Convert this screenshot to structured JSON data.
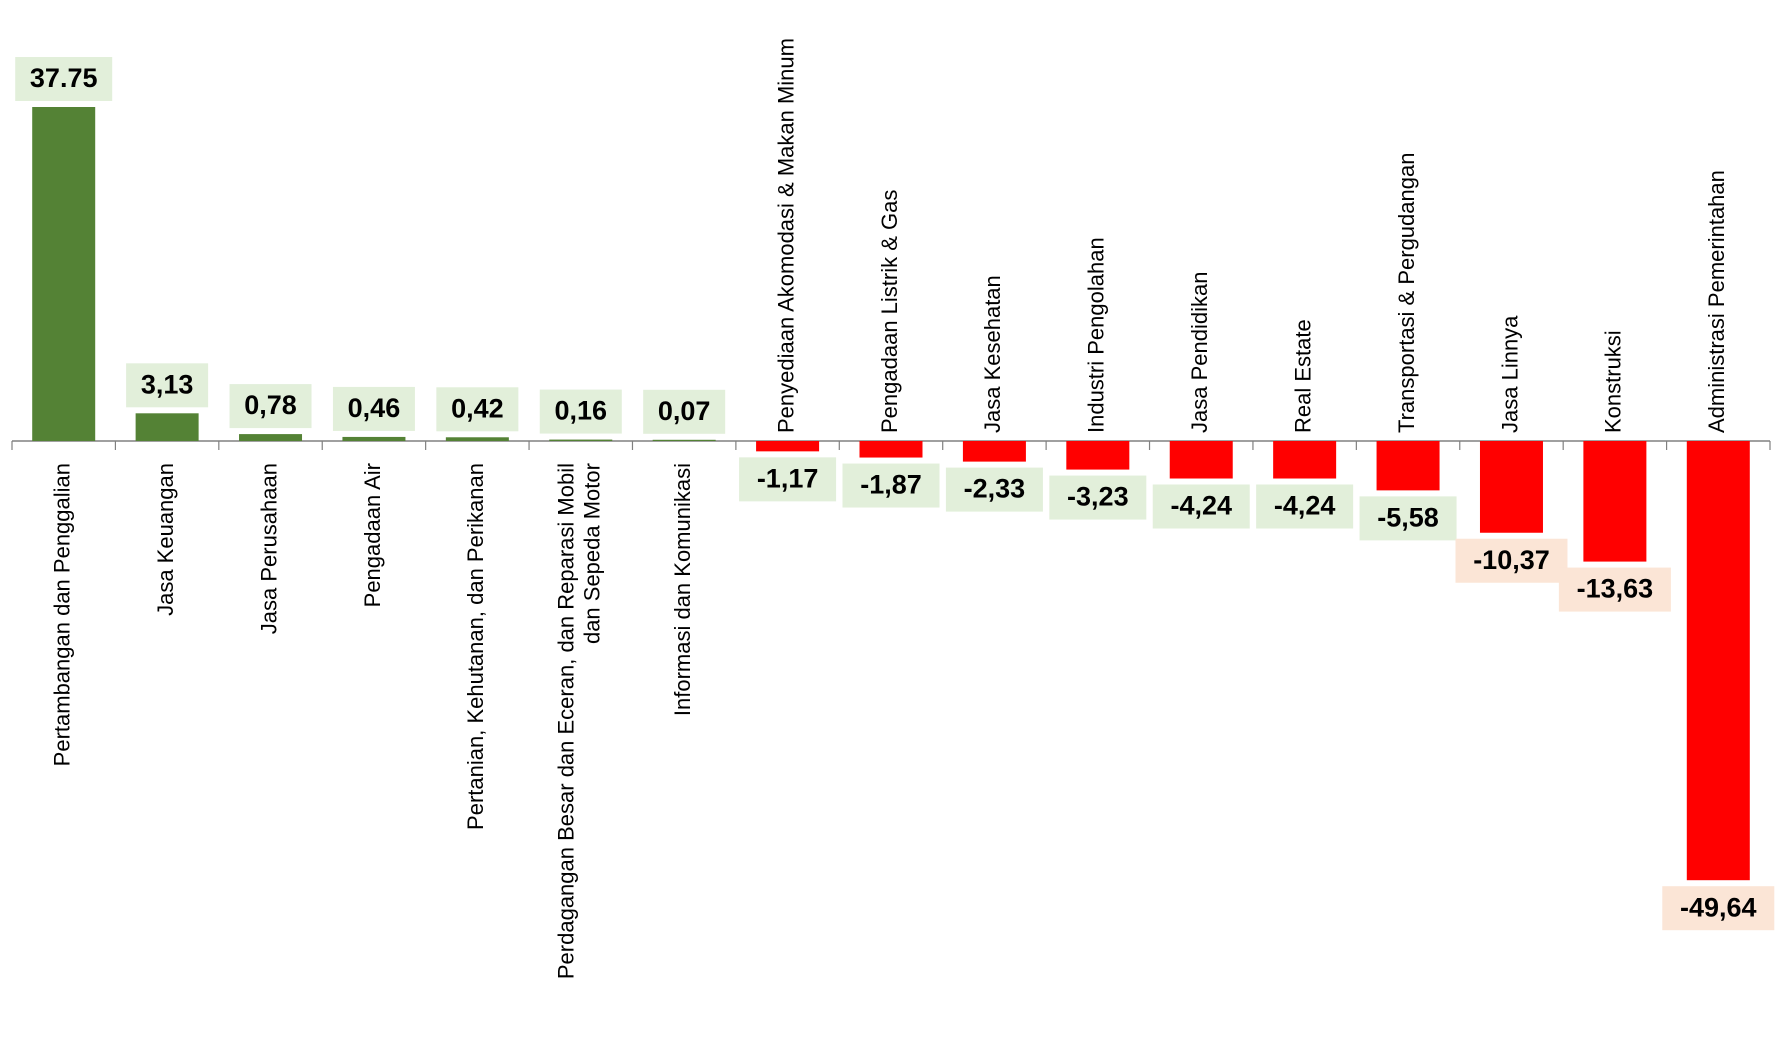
{
  "chart_data": {
    "type": "bar",
    "categories": [
      "Pertambangan dan Penggalian",
      "Jasa Keuangan",
      "Jasa Perusahaan",
      "Pengadaan Air",
      "Pertanian, Kehutanan, dan Perikanan",
      "Perdagangan Besar dan Eceran, dan Reparasi Mobil|dan Sepeda Motor",
      "Informasi dan Komunikasi",
      "Penyediaan Akomodasi & Makan Minum",
      "Pengadaan Listrik & Gas",
      "Jasa Kesehatan",
      "Industri Pengolahan",
      "Jasa Pendidikan",
      "Real Estate",
      "Transportasi & Pergudangan",
      "Jasa Linnya",
      "Konstruksi",
      "Administrasi Pemerintahan"
    ],
    "values": [
      37.75,
      3.13,
      0.78,
      0.46,
      0.42,
      0.16,
      0.07,
      -1.17,
      -1.87,
      -2.33,
      -3.23,
      -4.24,
      -4.24,
      -5.58,
      -10.37,
      -13.63,
      -49.64
    ],
    "value_labels": [
      "37.75",
      "3,13",
      "0,78",
      "0,46",
      "0,42",
      "0,16",
      "0,07",
      "-1,17",
      "-1,87",
      "-2,33",
      "-3,23",
      "-4,24",
      "-4,24",
      "-5,58",
      "-10,37",
      "-13,63",
      "-49,64"
    ],
    "label_backgrounds": [
      "light-green",
      "light-green",
      "light-green",
      "light-green",
      "light-green",
      "light-green",
      "light-green",
      "light-green",
      "light-green",
      "light-green",
      "light-green",
      "light-green",
      "light-green",
      "light-green",
      "peach",
      "peach",
      "peach"
    ],
    "title": "",
    "xlabel": "",
    "ylabel": "",
    "ylim": [
      -53.6,
      41.4
    ],
    "grid": false,
    "legend": "none",
    "colors": {
      "positive_bar": "#548235",
      "negative_bar": "#ff0000",
      "label_bg_light_green": "#e2efda",
      "label_bg_peach": "#fbe5d6",
      "axis": "#808080"
    }
  }
}
